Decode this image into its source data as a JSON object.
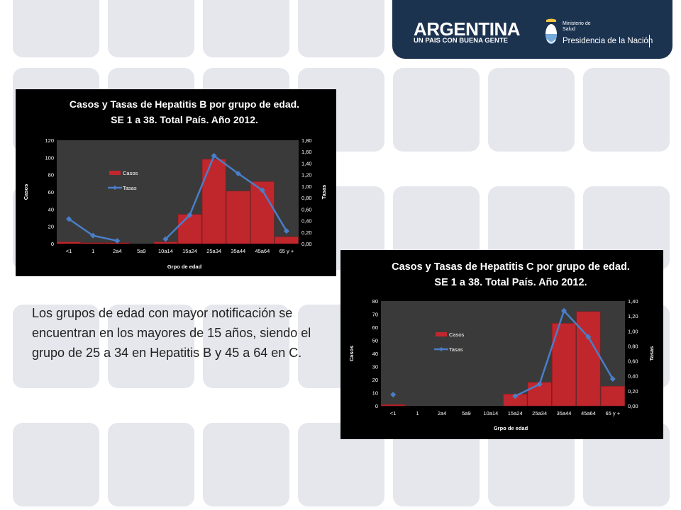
{
  "colors": {
    "tile": "#e6e7ec",
    "header_bg": "#1c3350",
    "bar_fill": "#c0272d",
    "line": "#4a7ec8",
    "plot_bg": "#3a3a3a"
  },
  "header": {
    "logo_title": "ARGENTINA",
    "logo_subtitle": "UN PAIS CON BUENA GENTE",
    "ministry_line1": "Ministerio de",
    "ministry_line2": "Salud",
    "presidencia": "Presidencia de la Nación",
    "emblem_icon": "coat-of-arms-icon"
  },
  "body_text": "Los grupos de edad con mayor notificación se encuentran en los mayores de 15 años, siendo el grupo de 25 a 34 en Hepatitis B y 45 a 64 en C.",
  "chart_data": [
    {
      "type": "bar",
      "title_line1": "Casos y Tasas de Hepatitis B por grupo de edad.",
      "title_line2": "SE 1 a 38. Total País. Año 2012.",
      "xlabel": "Grpo de edad",
      "ylabel": "Casos",
      "y2label": "Tasas",
      "categories": [
        "<1",
        "1",
        "2a4",
        "5a9",
        "10a14",
        "15a24",
        "25a34",
        "35a44",
        "45a64",
        "65 y +"
      ],
      "series": [
        {
          "name": "Casos",
          "type": "bar",
          "axis": "left",
          "values": [
            2,
            1,
            1,
            0,
            2,
            34,
            98,
            61,
            72,
            8
          ]
        },
        {
          "name": "Tasas",
          "type": "line",
          "axis": "right",
          "values": [
            0.43,
            0.14,
            0.05,
            null,
            0.08,
            0.5,
            1.53,
            1.22,
            0.93,
            0.22
          ]
        }
      ],
      "ylim": [
        0,
        120
      ],
      "yticks": [
        "0",
        "20",
        "40",
        "60",
        "80",
        "100",
        "120"
      ],
      "y2lim": [
        0,
        1.8
      ],
      "y2ticks": [
        "0,00",
        "0,20",
        "0,40",
        "0,60",
        "0,80",
        "1,00",
        "1,20",
        "1,40",
        "1,60",
        "1,80"
      ],
      "legend": "left-inside"
    },
    {
      "type": "bar",
      "title_line1": "Casos y Tasas de Hepatitis C por grupo de edad.",
      "title_line2": "SE 1 a 38. Total País. Año 2012.",
      "xlabel": "Grpo de edad",
      "ylabel": "Casos",
      "y2label": "Tasas",
      "categories": [
        "<1",
        "1",
        "2a4",
        "5a9",
        "10a14",
        "15a24",
        "25a34",
        "35a44",
        "45a64",
        "65 y +"
      ],
      "series": [
        {
          "name": "Casos",
          "type": "bar",
          "axis": "left",
          "values": [
            1,
            0,
            0,
            0,
            0,
            9,
            18,
            63,
            72,
            15
          ]
        },
        {
          "name": "Tasas",
          "type": "line",
          "axis": "right",
          "values": [
            0.15,
            null,
            null,
            null,
            null,
            0.13,
            0.29,
            1.27,
            0.92,
            0.36
          ]
        }
      ],
      "ylim": [
        0,
        80
      ],
      "yticks": [
        "0",
        "10",
        "20",
        "30",
        "40",
        "50",
        "60",
        "70",
        "80"
      ],
      "y2lim": [
        0,
        1.4
      ],
      "y2ticks": [
        "0,00",
        "0,20",
        "0,40",
        "0,60",
        "0,80",
        "1,00",
        "1,20",
        "1,40"
      ],
      "legend": "left-inside"
    }
  ]
}
